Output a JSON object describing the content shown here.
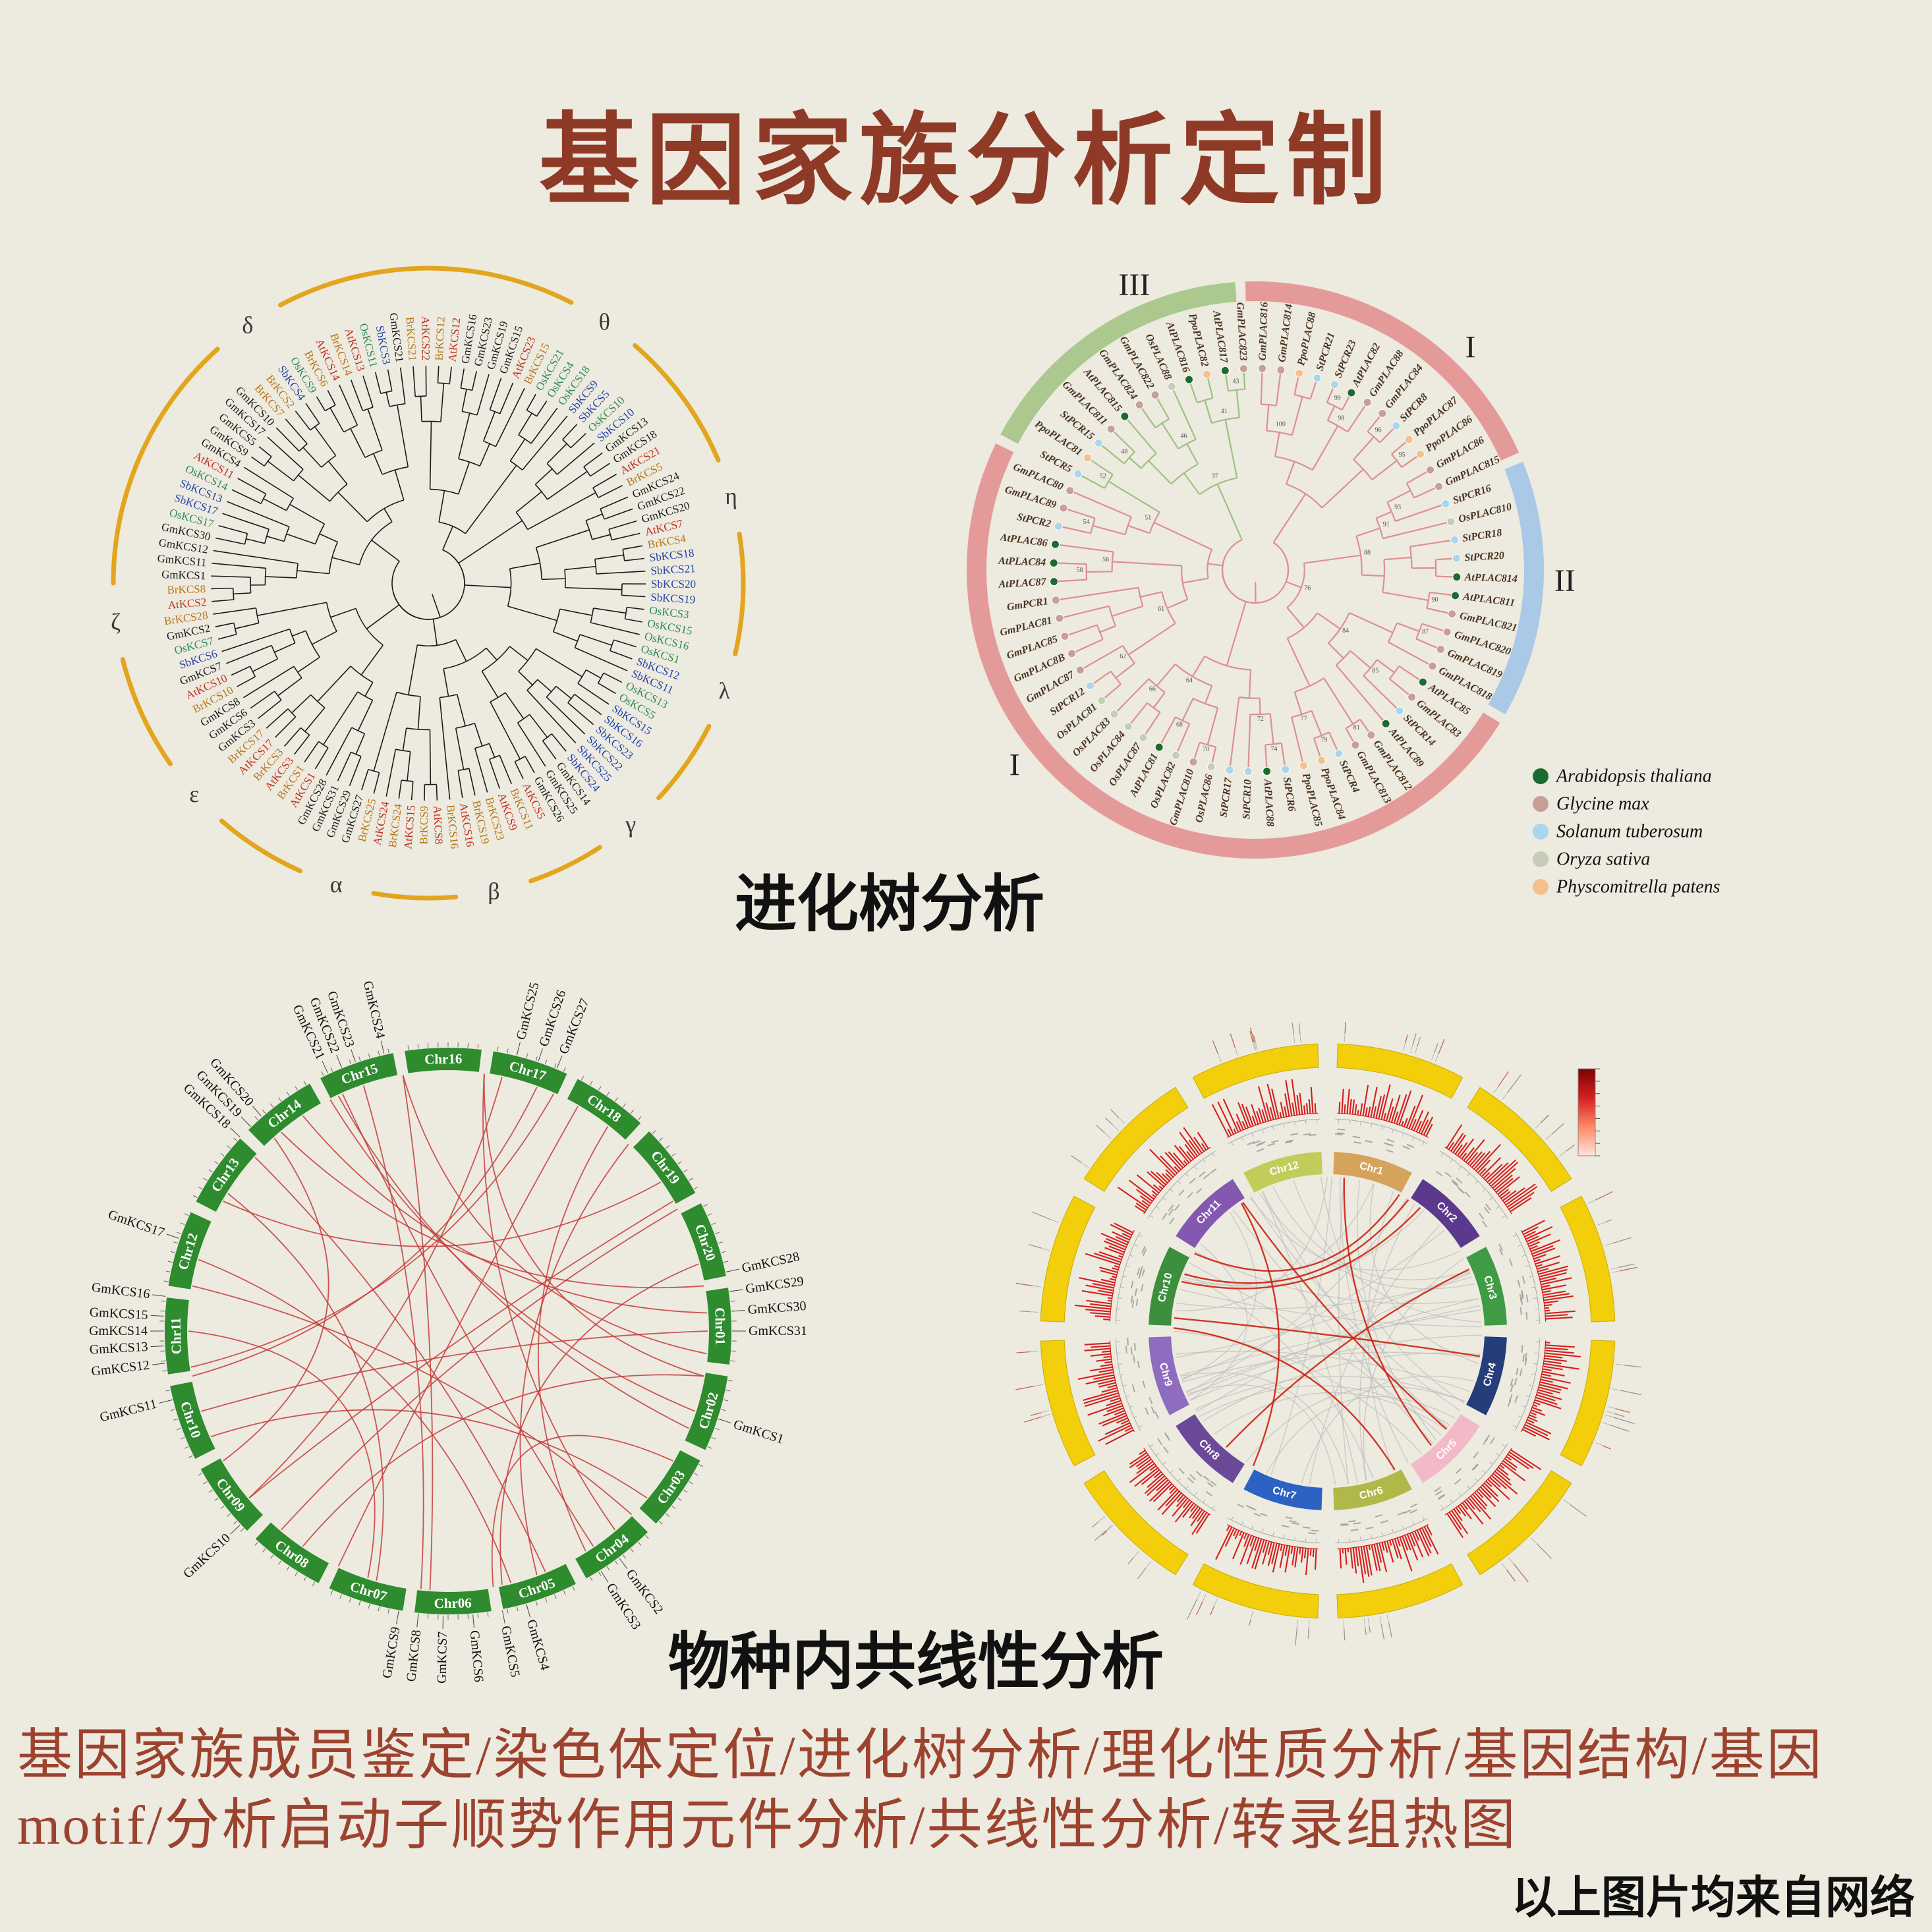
{
  "title": "基因家族分析定制",
  "captions": {
    "phylo": "进化树分析",
    "synteny": "物种内共线性分析"
  },
  "footer": {
    "services": "基因家族成员鉴定/染色体定位/进化树分析/理化性质分析/基因结构/基因motif/分析启动子顺势作用元件分析/共线性分析/转录组热图",
    "credit": "以上图片均来自网络"
  },
  "colors": {
    "background": "#edeadf",
    "title": "#8e3a26",
    "footer_text": "#9c4330",
    "caption_text": "#111111"
  },
  "kcs_tree": {
    "greek_labels": [
      {
        "t": "θ",
        "a": 34
      },
      {
        "t": "η",
        "a": 74
      },
      {
        "t": "λ",
        "a": 110
      },
      {
        "t": "γ",
        "a": 140
      },
      {
        "t": "β",
        "a": 168
      },
      {
        "t": "α",
        "a": 197
      },
      {
        "t": "ε",
        "a": 228
      },
      {
        "t": "ζ",
        "a": 263
      },
      {
        "t": "δ",
        "a": 325
      }
    ],
    "ring_color": "#e2a51d",
    "branch_color": "#1b1b1b",
    "species_colors": {
      "Gm": "#1c1c1c",
      "At": "#c03020",
      "Br": "#b8761a",
      "Os": "#2e8b57",
      "Sb": "#2244aa"
    },
    "leaves": [
      "BrKCS21",
      "AtKCS22",
      "BrKCS12",
      "AtKCS12",
      "GmKCS16",
      "GmKCS23",
      "GmKCS19",
      "GmKCS15",
      "AtKCS23",
      "BrKCS15",
      "OsKCS21",
      "OsKCS4",
      "OsKCS18",
      "SbKCS9",
      "SbKCS5",
      "OsKCS10",
      "SbKCS10",
      "GmKCS13",
      "GmKCS18",
      "AtKCS21",
      "BrKCS5",
      "GmKCS24",
      "GmKCS22",
      "GmKCS20",
      "AtKCS7",
      "BrKCS4",
      "SbKCS18",
      "SbKCS21",
      "SbKCS20",
      "SbKCS19",
      "OsKCS3",
      "OsKCS15",
      "OsKCS16",
      "OsKCS1",
      "SbKCS12",
      "SbKCS11",
      "OsKCS13",
      "OsKCS5",
      "SbKCS15",
      "SbKCS16",
      "SbKCS23",
      "SbKCS22",
      "SbKCS25",
      "SbKCS24",
      "GmKCS14",
      "GmKCS25",
      "GmKCS26",
      "AtKCS5",
      "BrKCS11",
      "AtKCS9",
      "BrKCS23",
      "BrKCS19",
      "AtKCS16",
      "BrKCS16",
      "AtKCS8",
      "BrKCS9",
      "AtKCS15",
      "BrKCS24",
      "AtKCS24",
      "BrKCS25",
      "GmKCS27",
      "GmKCS29",
      "GmKCS31",
      "GmKCS28",
      "AtKCS1",
      "BrKCS1",
      "AtKCS3",
      "BrKCS3",
      "AtKCS17",
      "BrKCS17",
      "GmKCS3",
      "GmKCS6",
      "GmKCS8",
      "BrKCS10",
      "AtKCS10",
      "GmKCS7",
      "SbKCS6",
      "OsKCS7",
      "GmKCS2",
      "BrKCS28",
      "AtKCS2",
      "BrKCS8",
      "GmKCS1",
      "GmKCS11",
      "GmKCS12",
      "GmKCS30",
      "OsKCS17",
      "SbKCS17",
      "SbKCS13",
      "OsKCS14",
      "AtKCS11",
      "GmKCS4",
      "GmKCS9",
      "GmKCS5",
      "GmKCS17",
      "GmKCS10",
      "BrKCS7",
      "BrKCS2",
      "SbKCS4",
      "OsKCS9",
      "BrKCS6",
      "AtKCS14",
      "BrKCS14",
      "AtKCS13",
      "OsKCS11",
      "SbKCS3",
      "GmKCS21"
    ]
  },
  "plac8_tree": {
    "clade_labels": [
      {
        "t": "I",
        "a": 44
      },
      {
        "t": "II",
        "a": 92
      },
      {
        "t": "I",
        "a": 231
      },
      {
        "t": "III",
        "a": 337
      }
    ],
    "sectors": [
      {
        "from": 358,
        "to": 66,
        "color": "#e59a9a"
      },
      {
        "from": 68,
        "to": 120,
        "color": "#a9c9e6"
      },
      {
        "from": 122,
        "to": 296,
        "color": "#e59a9a"
      },
      {
        "from": 298,
        "to": 356,
        "color": "#abc98f"
      }
    ],
    "branch_colors": {
      "default": "#dd9090",
      "clade3": "#9dc183"
    },
    "label_color": "#4a3420",
    "species_prefix_colors": {
      "At": "#1b6b2e",
      "Gm": "#c89f94",
      "St": "#a9d6ea",
      "Os": "#c6cdb7",
      "Pp": "#f4c08d"
    },
    "legend": [
      {
        "name": "Arabidopsis thaliana",
        "color": "#1b6b2e"
      },
      {
        "name": "Glycine max",
        "color": "#c89f94"
      },
      {
        "name": "Solanum tuberosum",
        "color": "#a9d6ea"
      },
      {
        "name": "Oryza sativa",
        "color": "#c6cdb7"
      },
      {
        "name": "Physcomitrella patens",
        "color": "#f4c08d"
      }
    ],
    "bootstrap_values": [
      100,
      99,
      98,
      96,
      95,
      93,
      91,
      90,
      88,
      87,
      85,
      84,
      81,
      79,
      77,
      76,
      74,
      72,
      70,
      68,
      66,
      64,
      62,
      61,
      58,
      56,
      54,
      52,
      51,
      48,
      46,
      43,
      41,
      37,
      35,
      33,
      31,
      29,
      27,
      25,
      23,
      21,
      19,
      17,
      12,
      9,
      6,
      2
    ],
    "leaves": [
      "GmPLAC816",
      "GmPLAC814",
      "PpoPLAC88",
      "StPCR21",
      "StPCR23",
      "AtPLAC82",
      "GmPLAC88",
      "GmPLAC84",
      "StPCR8",
      "PpoPLAC87",
      "PpoPLAC86",
      "GmPLAC86",
      "GmPLAC815",
      "StPCR16",
      "OsPLAC810",
      "StPCR18",
      "StPCR20",
      "AtPLAC814",
      "AtPLAC811",
      "GmPLAC821",
      "GmPLAC820",
      "GmPLAC819",
      "GmPLAC818",
      "AtPLAC85",
      "GmPLAC83",
      "StPCR14",
      "AtPLAC89",
      "GmPLAC812",
      "GmPLAC813",
      "StPCR4",
      "PpoPLAC84",
      "PpoPLAC85",
      "StPCR6",
      "AtPLAC88",
      "StPCR10",
      "StPCR17",
      "OsPLAC86",
      "GmPLAC810",
      "OsPLAC82",
      "AtPLAC81",
      "OsPLAC87",
      "OsPLAC84",
      "OsPLAC83",
      "OsPLAC81",
      "StPCR12",
      "GmPLAC87",
      "GmPLAC8B",
      "GmPLAC85",
      "GmPLAC81",
      "GmPCR1",
      "AtPLAC87",
      "AtPLAC84",
      "AtPLAC86",
      "StPCR2",
      "GmPLAC89",
      "GmPLAC80",
      "StPCR5",
      "PpoPLAC81",
      "StPCR15",
      "GmPLAC811",
      "AtPLAC815",
      "GmPLAC824",
      "GmPLAC822",
      "OsPLAC88",
      "AtPLAC816",
      "PpoPLAC82",
      "AtPLAC817",
      "GmPLAC823"
    ]
  },
  "synteny_circos": {
    "chromosomes": [
      "Chr16",
      "Chr17",
      "Chr18",
      "Chr19",
      "Chr20",
      "Chr01",
      "Chr02",
      "Chr03",
      "Chr04",
      "Chr05",
      "Chr06",
      "Chr07",
      "Chr08",
      "Chr09",
      "Chr10",
      "Chr11",
      "Chr12",
      "Chr13",
      "Chr14",
      "Chr15"
    ],
    "chromosome_color": "#2e8b2e",
    "chromosome_text_color": "#ffffff",
    "link_color": "#c43b3b",
    "gene_labels": [
      {
        "t": "GmKCS25",
        "a": 14
      },
      {
        "t": "GmKCS26",
        "a": 18.5
      },
      {
        "t": "GmKCS27",
        "a": 22.5
      },
      {
        "t": "GmKCS28",
        "a": 78
      },
      {
        "t": "GmKCS29",
        "a": 82
      },
      {
        "t": "GmKCS30",
        "a": 86
      },
      {
        "t": "GmKCS31",
        "a": 90
      },
      {
        "t": "GmKCS1",
        "a": 108
      },
      {
        "t": "GmKCS2",
        "a": 143
      },
      {
        "t": "GmKCS3",
        "a": 147.5
      },
      {
        "t": "GmKCS4",
        "a": 164
      },
      {
        "t": "GmKCS5",
        "a": 169
      },
      {
        "t": "GmKCS6",
        "a": 175
      },
      {
        "t": "GmKCS7",
        "a": 181
      },
      {
        "t": "GmKCS8",
        "a": 186
      },
      {
        "t": "GmKCS9",
        "a": 190
      },
      {
        "t": "GmKCS10",
        "a": 227
      },
      {
        "t": "GmKCS11",
        "a": 256
      },
      {
        "t": "GmKCS12",
        "a": 263.5
      },
      {
        "t": "GmKCS13",
        "a": 267
      },
      {
        "t": "GmKCS14",
        "a": 270
      },
      {
        "t": "GmKCS15",
        "a": 273
      },
      {
        "t": "GmKCS16",
        "a": 277
      },
      {
        "t": "GmKCS17",
        "a": 289
      },
      {
        "t": "GmKCS18",
        "a": 313
      },
      {
        "t": "GmKCS19",
        "a": 316
      },
      {
        "t": "GmKCS20",
        "a": 319
      },
      {
        "t": "GmKCS21",
        "a": 335
      },
      {
        "t": "GmKCS22",
        "a": 338
      },
      {
        "t": "GmKCS23",
        "a": 341
      },
      {
        "t": "GmKCS24",
        "a": 347
      }
    ],
    "links": [
      [
        333,
        108
      ],
      [
        336,
        146
      ],
      [
        341,
        186
      ],
      [
        350,
        95
      ],
      [
        8,
        140
      ],
      [
        12,
        230
      ],
      [
        20,
        260
      ],
      [
        30,
        205
      ],
      [
        44,
        160
      ],
      [
        55,
        300
      ],
      [
        62,
        220
      ],
      [
        80,
        320
      ],
      [
        90,
        252
      ],
      [
        100,
        8
      ],
      [
        112,
        335
      ],
      [
        120,
        170
      ],
      [
        135,
        280
      ],
      [
        148,
        38
      ],
      [
        158,
        312
      ],
      [
        168,
        75
      ],
      [
        184,
        350
      ],
      [
        198,
        270
      ],
      [
        214,
        100
      ],
      [
        230,
        60
      ],
      [
        246,
        130
      ],
      [
        262,
        24
      ],
      [
        286,
        166
      ],
      [
        302,
        196
      ],
      [
        318,
        240
      ],
      [
        326,
        86
      ]
    ]
  },
  "multi_track_circos": {
    "segments": [
      "Chr1",
      "Chr2",
      "Chr3",
      "Chr4",
      "Chr5",
      "Chr6",
      "Chr7",
      "Chr8",
      "Chr9",
      "Chr10",
      "Chr11",
      "Chr12"
    ],
    "segment_colors": [
      "#d6a35c",
      "#5b3a8e",
      "#3f9b44",
      "#253d7a",
      "#f2b9c9",
      "#b0b849",
      "#2b62c4",
      "#6a4a98",
      "#8e6cc0",
      "#3d8f3d",
      "#8458b0",
      "#c2cc5a"
    ],
    "segment_text_color": "#ffffff",
    "outer_ring_color": "#f2cf0a",
    "histogram_color": "#d41414",
    "axis_color": "#aaaaaa",
    "link_colors": {
      "default": "#bcbcbc",
      "highlight": "#cc2211"
    },
    "heat_legend_colors": [
      "#7e0000",
      "#d42020",
      "#ff8866",
      "#ffe4da"
    ]
  }
}
